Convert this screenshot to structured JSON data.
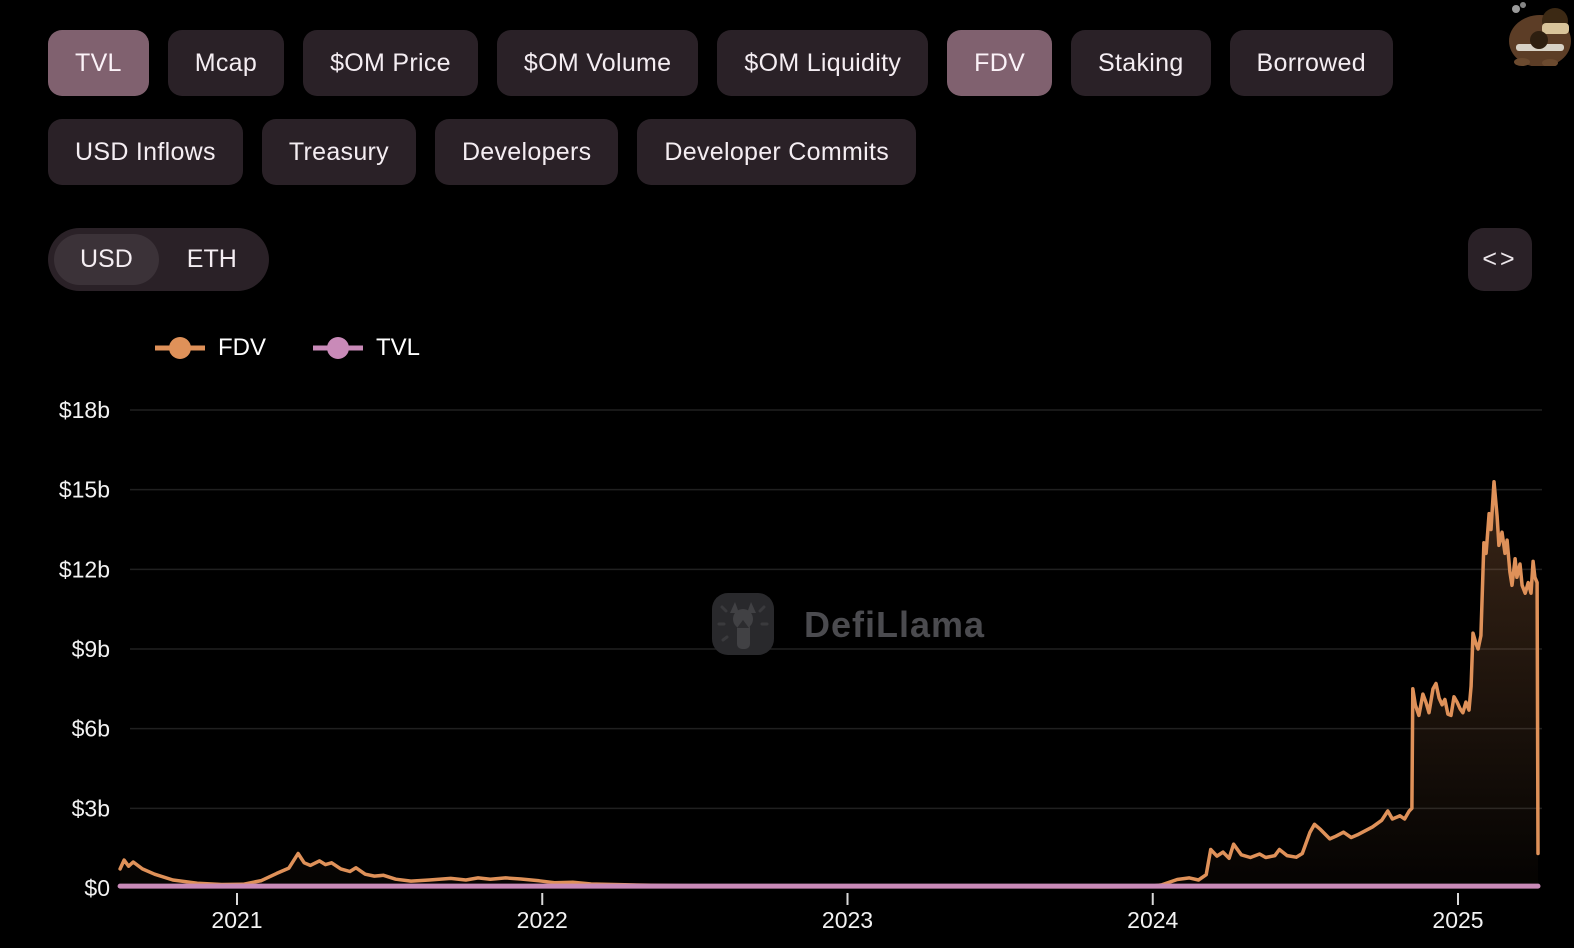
{
  "app": {
    "watermark": "DefiLlama"
  },
  "colors": {
    "background": "#000000",
    "pill_bg": "#2a2127",
    "pill_active_bg": "#80616f",
    "toggle_selected_bg": "#3b3238",
    "fdv": "#df9159",
    "tvl": "#c98ab8",
    "gridline": "#202020",
    "axis_text": "#f2f2f2",
    "watermark_text": "#4b4b4f"
  },
  "metrics": {
    "row1": [
      {
        "label": "TVL",
        "active": true
      },
      {
        "label": "Mcap",
        "active": false
      },
      {
        "label": "$OM Price",
        "active": false
      },
      {
        "label": "$OM Volume",
        "active": false
      },
      {
        "label": "$OM Liquidity",
        "active": false
      },
      {
        "label": "FDV",
        "active": true
      },
      {
        "label": "Staking",
        "active": false
      },
      {
        "label": "Borrowed",
        "active": false
      }
    ],
    "row2": [
      {
        "label": "USD Inflows",
        "active": false
      },
      {
        "label": "Treasury",
        "active": false
      },
      {
        "label": "Developers",
        "active": false
      },
      {
        "label": "Developer Commits",
        "active": false
      }
    ]
  },
  "denomination": {
    "options": [
      {
        "label": "USD",
        "active": true
      },
      {
        "label": "ETH",
        "active": false
      }
    ]
  },
  "embed": {
    "glyph": "<>"
  },
  "legend": [
    {
      "label": "FDV",
      "color": "#df9159"
    },
    {
      "label": "TVL",
      "color": "#c98ab8"
    }
  ],
  "chart_data": {
    "type": "area",
    "title": "",
    "xlabel": "",
    "ylabel": "",
    "legend_position": "top-left",
    "grid": true,
    "watermark": "DefiLlama",
    "x_axis": {
      "range": [
        2020.6,
        2025.29
      ],
      "ticks": [
        2021,
        2022,
        2023,
        2024,
        2025
      ]
    },
    "y_axis": {
      "range": [
        0,
        18
      ],
      "ticks": [
        0,
        3,
        6,
        9,
        12,
        15,
        18
      ],
      "tick_labels": [
        "$0",
        "$3b",
        "$6b",
        "$9b",
        "$12b",
        "$15b",
        "$18b"
      ],
      "unit": "USD billions"
    },
    "series": [
      {
        "name": "FDV",
        "color": "#df9159",
        "type": "line",
        "area_fill": true,
        "points": [
          [
            2020.617,
            0.72
          ],
          [
            2020.63,
            1.05
          ],
          [
            2020.645,
            0.82
          ],
          [
            2020.66,
            0.98
          ],
          [
            2020.69,
            0.72
          ],
          [
            2020.73,
            0.52
          ],
          [
            2020.79,
            0.3
          ],
          [
            2020.87,
            0.18
          ],
          [
            2020.95,
            0.13
          ],
          [
            2021.02,
            0.14
          ],
          [
            2021.08,
            0.28
          ],
          [
            2021.13,
            0.55
          ],
          [
            2021.17,
            0.75
          ],
          [
            2021.2,
            1.3
          ],
          [
            2021.22,
            0.95
          ],
          [
            2021.24,
            0.85
          ],
          [
            2021.27,
            1.02
          ],
          [
            2021.29,
            0.88
          ],
          [
            2021.31,
            0.95
          ],
          [
            2021.34,
            0.72
          ],
          [
            2021.37,
            0.62
          ],
          [
            2021.39,
            0.76
          ],
          [
            2021.42,
            0.52
          ],
          [
            2021.45,
            0.45
          ],
          [
            2021.48,
            0.48
          ],
          [
            2021.52,
            0.33
          ],
          [
            2021.57,
            0.26
          ],
          [
            2021.63,
            0.3
          ],
          [
            2021.7,
            0.36
          ],
          [
            2021.75,
            0.3
          ],
          [
            2021.79,
            0.38
          ],
          [
            2021.83,
            0.33
          ],
          [
            2021.88,
            0.38
          ],
          [
            2021.93,
            0.34
          ],
          [
            2021.99,
            0.27
          ],
          [
            2022.04,
            0.2
          ],
          [
            2022.1,
            0.22
          ],
          [
            2022.16,
            0.15
          ],
          [
            2022.27,
            0.12
          ],
          [
            2022.44,
            0.09
          ],
          [
            2022.65,
            0.07
          ],
          [
            2022.91,
            0.06
          ],
          [
            2023.17,
            0.05
          ],
          [
            2023.5,
            0.05
          ],
          [
            2023.83,
            0.04
          ],
          [
            2023.98,
            0.05
          ],
          [
            2024.03,
            0.12
          ],
          [
            2024.08,
            0.32
          ],
          [
            2024.12,
            0.38
          ],
          [
            2024.15,
            0.3
          ],
          [
            2024.175,
            0.5
          ],
          [
            2024.19,
            1.45
          ],
          [
            2024.21,
            1.2
          ],
          [
            2024.23,
            1.35
          ],
          [
            2024.25,
            1.12
          ],
          [
            2024.265,
            1.65
          ],
          [
            2024.29,
            1.25
          ],
          [
            2024.32,
            1.15
          ],
          [
            2024.35,
            1.28
          ],
          [
            2024.37,
            1.15
          ],
          [
            2024.4,
            1.22
          ],
          [
            2024.415,
            1.45
          ],
          [
            2024.44,
            1.22
          ],
          [
            2024.47,
            1.16
          ],
          [
            2024.49,
            1.3
          ],
          [
            2024.515,
            2.1
          ],
          [
            2024.53,
            2.4
          ],
          [
            2024.55,
            2.2
          ],
          [
            2024.58,
            1.85
          ],
          [
            2024.6,
            1.95
          ],
          [
            2024.625,
            2.1
          ],
          [
            2024.65,
            1.9
          ],
          [
            2024.67,
            2.0
          ],
          [
            2024.695,
            2.15
          ],
          [
            2024.72,
            2.3
          ],
          [
            2024.75,
            2.55
          ],
          [
            2024.77,
            2.9
          ],
          [
            2024.785,
            2.6
          ],
          [
            2024.81,
            2.72
          ],
          [
            2024.825,
            2.6
          ],
          [
            2024.84,
            2.9
          ],
          [
            2024.849,
            3.0
          ],
          [
            2024.852,
            7.5
          ],
          [
            2024.86,
            6.9
          ],
          [
            2024.872,
            6.5
          ],
          [
            2024.885,
            7.3
          ],
          [
            2024.895,
            7.0
          ],
          [
            2024.905,
            6.6
          ],
          [
            2024.918,
            7.5
          ],
          [
            2024.928,
            7.7
          ],
          [
            2024.938,
            7.15
          ],
          [
            2024.948,
            6.9
          ],
          [
            2024.957,
            7.1
          ],
          [
            2024.967,
            6.55
          ],
          [
            2024.977,
            6.5
          ],
          [
            2024.987,
            7.2
          ],
          [
            2024.997,
            7.0
          ],
          [
            2025.007,
            6.75
          ],
          [
            2025.016,
            6.6
          ],
          [
            2025.026,
            7.0
          ],
          [
            2025.036,
            6.7
          ],
          [
            2025.043,
            7.6
          ],
          [
            2025.049,
            9.6
          ],
          [
            2025.059,
            9.2
          ],
          [
            2025.066,
            9.0
          ],
          [
            2025.075,
            9.5
          ],
          [
            2025.085,
            13.0
          ],
          [
            2025.092,
            12.6
          ],
          [
            2025.102,
            14.1
          ],
          [
            2025.108,
            13.5
          ],
          [
            2025.118,
            15.3
          ],
          [
            2025.128,
            14.0
          ],
          [
            2025.134,
            12.9
          ],
          [
            2025.144,
            13.4
          ],
          [
            2025.154,
            12.6
          ],
          [
            2025.161,
            13.1
          ],
          [
            2025.17,
            11.9
          ],
          [
            2025.177,
            11.4
          ],
          [
            2025.187,
            12.4
          ],
          [
            2025.193,
            11.7
          ],
          [
            2025.203,
            12.2
          ],
          [
            2025.21,
            11.4
          ],
          [
            2025.22,
            11.1
          ],
          [
            2025.23,
            11.5
          ],
          [
            2025.239,
            11.1
          ],
          [
            2025.246,
            12.3
          ],
          [
            2025.252,
            11.7
          ],
          [
            2025.259,
            11.5
          ],
          [
            2025.262,
            1.3
          ]
        ]
      },
      {
        "name": "TVL",
        "color": "#c98ab8",
        "type": "line",
        "area_fill": false,
        "points": [
          [
            2020.617,
            0.07
          ],
          [
            2023.0,
            0.07
          ],
          [
            2025.262,
            0.07
          ]
        ]
      }
    ]
  }
}
